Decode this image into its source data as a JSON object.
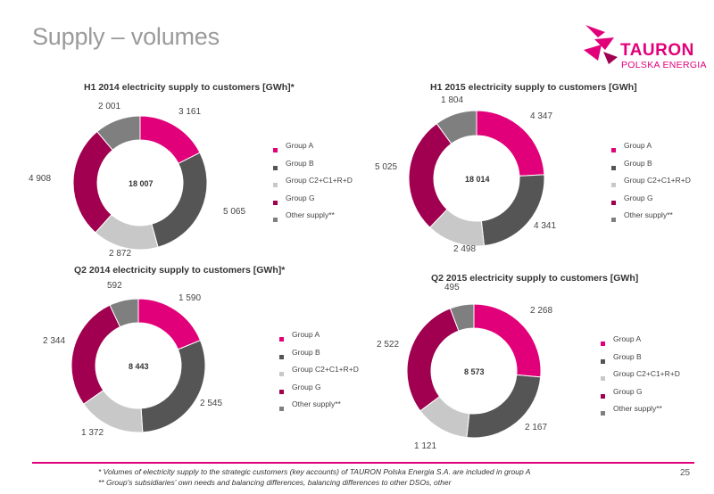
{
  "header": {
    "title": "Supply – volumes",
    "logo_name": "TAURON",
    "logo_sub": "POLSKA ENERGIA",
    "logo_icon": "tauron-logo-icon"
  },
  "legend_labels": [
    "Group A",
    "Group B",
    "Group C2+C1+R+D",
    "Group G",
    "Other supply**"
  ],
  "colors": {
    "group_a": "#e2007a",
    "group_b": "#555555",
    "group_c": "#c8c8c8",
    "group_g": "#a0004f",
    "other": "#7f7f7f",
    "accent": "#e2007a"
  },
  "chart_data": [
    {
      "type": "pie",
      "donut": true,
      "title": "H1 2014 electricity supply to customers [GWh]*",
      "total": "18 007",
      "categories": [
        "Group A",
        "Group B",
        "Group C2+C1+R+D",
        "Group G",
        "Other supply**"
      ],
      "values": [
        3161,
        5065,
        2872,
        4908,
        2001
      ],
      "value_labels": [
        "3 161",
        "5 065",
        "2 872",
        "4 908",
        "2 001"
      ]
    },
    {
      "type": "pie",
      "donut": true,
      "title": "H1 2015 electricity supply to customers [GWh]",
      "total": "18 014",
      "categories": [
        "Group A",
        "Group B",
        "Group C2+C1+R+D",
        "Group G",
        "Other supply**"
      ],
      "values": [
        4347,
        4341,
        2498,
        5025,
        1804
      ],
      "value_labels": [
        "4 347",
        "4 341",
        "2 498",
        "5 025",
        "1 804"
      ]
    },
    {
      "type": "pie",
      "donut": true,
      "title": "Q2 2014 electricity supply to customers [GWh]*",
      "total": "8 443",
      "categories": [
        "Group A",
        "Group B",
        "Group C2+C1+R+D",
        "Group G",
        "Other supply**"
      ],
      "values": [
        1590,
        2545,
        1372,
        2344,
        592
      ],
      "value_labels": [
        "1 590",
        "2 545",
        "1 372",
        "2 344",
        "592"
      ]
    },
    {
      "type": "pie",
      "donut": true,
      "title": "Q2 2015 electricity supply to customers [GWh]",
      "total": "8 573",
      "categories": [
        "Group A",
        "Group B",
        "Group C2+C1+R+D",
        "Group G",
        "Other supply**"
      ],
      "values": [
        2268,
        2167,
        1121,
        2522,
        495
      ],
      "value_labels": [
        "2 268",
        "2 167",
        "1 121",
        "2 522",
        "495"
      ]
    }
  ],
  "footer": {
    "note1": "* Volumes of electricity supply to the strategic customers (key accounts) of TAURON Polska Energia S.A. are included in group A",
    "note2": "** Group's subsidiaries' own needs and balancing differences, balancing differences to other DSOs, other",
    "page_number": "25"
  }
}
